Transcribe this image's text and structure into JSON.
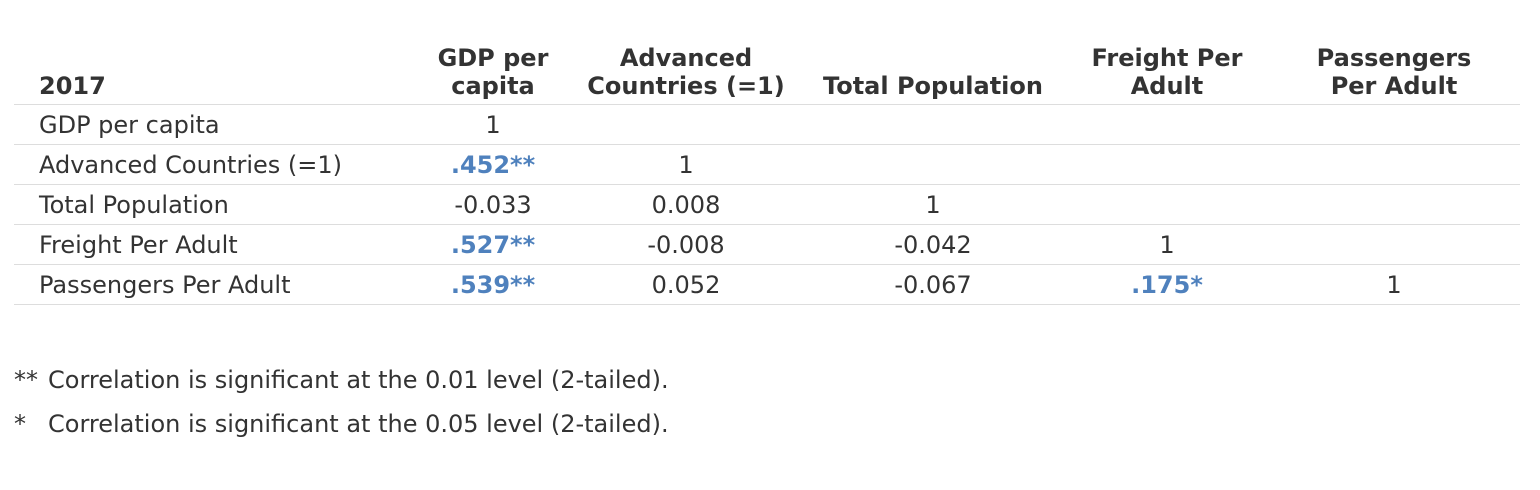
{
  "table": {
    "headers": [
      "2017",
      "GDP per\ncapita",
      "Advanced\nCountries (=1)",
      "Total Population",
      "Freight Per\nAdult",
      "Passengers\nPer Adult"
    ],
    "rows": [
      {
        "label": "GDP per capita",
        "cells": [
          {
            "v": "1",
            "sig": false
          },
          {
            "v": "",
            "sig": false
          },
          {
            "v": "",
            "sig": false
          },
          {
            "v": "",
            "sig": false
          },
          {
            "v": "",
            "sig": false
          }
        ]
      },
      {
        "label": "Advanced Countries (=1)",
        "cells": [
          {
            "v": ".452**",
            "sig": true
          },
          {
            "v": "1",
            "sig": false
          },
          {
            "v": "",
            "sig": false
          },
          {
            "v": "",
            "sig": false
          },
          {
            "v": "",
            "sig": false
          }
        ]
      },
      {
        "label": "Total Population",
        "cells": [
          {
            "v": "-0.033",
            "sig": false
          },
          {
            "v": "0.008",
            "sig": false
          },
          {
            "v": "1",
            "sig": false
          },
          {
            "v": "",
            "sig": false
          },
          {
            "v": "",
            "sig": false
          }
        ]
      },
      {
        "label": "Freight Per Adult",
        "cells": [
          {
            "v": ".527**",
            "sig": true
          },
          {
            "v": "-0.008",
            "sig": false
          },
          {
            "v": "-0.042",
            "sig": false
          },
          {
            "v": "1",
            "sig": false
          },
          {
            "v": "",
            "sig": false
          }
        ]
      },
      {
        "label": "Passengers Per Adult",
        "cells": [
          {
            "v": ".539**",
            "sig": true
          },
          {
            "v": "0.052",
            "sig": false
          },
          {
            "v": "-0.067",
            "sig": false
          },
          {
            "v": ".175*",
            "sig": true
          },
          {
            "v": "1",
            "sig": false
          }
        ]
      }
    ]
  },
  "notes": [
    {
      "mark": "**",
      "text": "Correlation is significant at the 0.01 level (2-tailed)."
    },
    {
      "mark": "*",
      "text": "Correlation is significant at the 0.05 level (2-tailed)."
    }
  ],
  "colors": {
    "significant": "#4f81bd",
    "text": "#333333",
    "rule": "#dddddd"
  }
}
